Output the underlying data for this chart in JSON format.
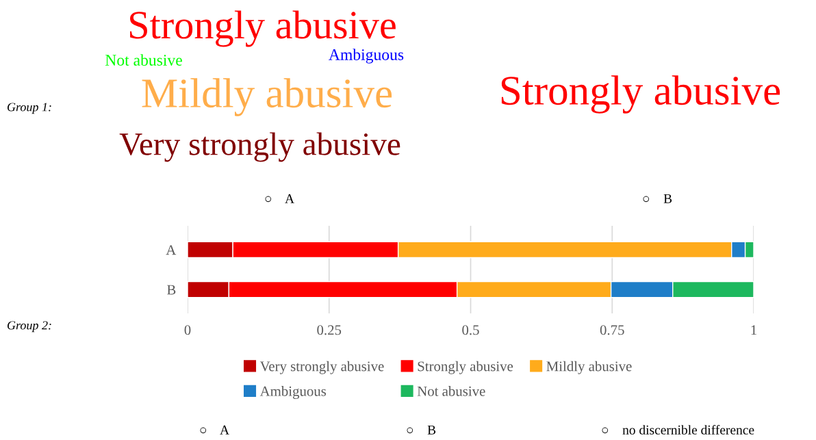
{
  "chart_data": {
    "type": "bar",
    "orientation": "horizontal",
    "stacked": true,
    "categories": [
      "A",
      "B"
    ],
    "series": [
      {
        "name": "Very strongly abusive",
        "color": "#c00000",
        "values": [
          0.08,
          0.073
        ]
      },
      {
        "name": "Strongly abusive",
        "color": "#ff0000",
        "values": [
          0.292,
          0.403
        ]
      },
      {
        "name": "Mildly abusive",
        "color": "#ffab1b",
        "values": [
          0.589,
          0.272
        ]
      },
      {
        "name": "Ambiguous",
        "color": "#1f7ec8",
        "values": [
          0.024,
          0.109
        ]
      },
      {
        "name": "Not abusive",
        "color": "#1db85e",
        "values": [
          0.015,
          0.143
        ]
      }
    ],
    "xlim": [
      0,
      1
    ],
    "xticks": [
      0,
      0.25,
      0.5,
      0.75,
      1
    ],
    "grid": "x",
    "legend": "bottom",
    "annotations": [
      "Group 1:",
      "Strongly abusive",
      "Not abusive",
      "Ambiguous",
      "Mildly abusive",
      "Very strongly abusive",
      "Strongly abusive",
      "○    A",
      "○    B",
      "Group 2:",
      "○    A",
      "○    B",
      "○    no discernible difference"
    ]
  }
}
